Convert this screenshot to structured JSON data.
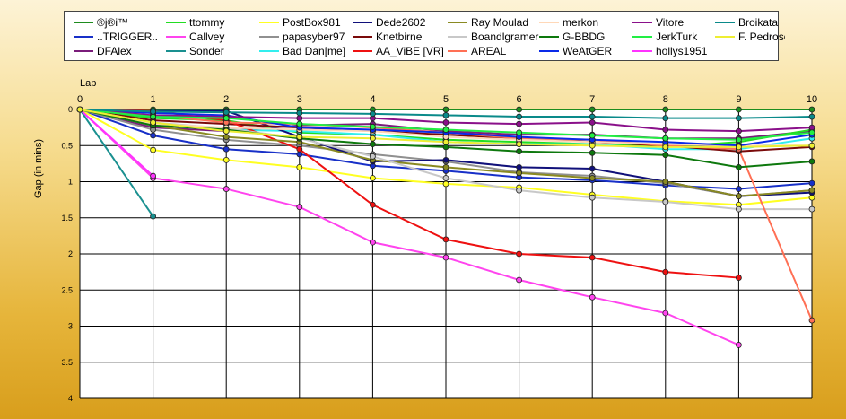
{
  "chart_data": {
    "type": "line",
    "xlabel": "Lap",
    "ylabel": "Gap (in mins)",
    "xlim": [
      0,
      10
    ],
    "ylim": [
      0,
      4
    ],
    "y_inverted": true,
    "x_ticks": [
      "0",
      "1",
      "2",
      "3",
      "4",
      "5",
      "6",
      "7",
      "8",
      "9",
      "10"
    ],
    "y_ticks": [
      "0",
      "0.5",
      "1",
      "1.5",
      "2",
      "2.5",
      "3",
      "3.5",
      "4"
    ],
    "grid": true,
    "legend_position": "top",
    "series": [
      {
        "name": "®j®i™",
        "color": "#1e8c1e",
        "values": [
          0,
          0,
          0,
          0,
          0,
          0,
          0,
          0,
          0,
          0,
          0
        ]
      },
      {
        "name": "..TRIGGER..",
        "color": "#1830c8",
        "values": [
          0,
          0.36,
          0.55,
          0.62,
          0.78,
          0.85,
          0.94,
          0.98,
          1.05,
          1.1,
          1.02
        ]
      },
      {
        "name": "DFAlex",
        "color": "#7a1c7a",
        "values": [
          0,
          0.25,
          0.3,
          0.22,
          0.2,
          0.3,
          0.35,
          0.35,
          0.4,
          0.4,
          0.3
        ]
      },
      {
        "name": "ttommy",
        "color": "#22dd22",
        "values": [
          0,
          0.12,
          0.15,
          0.32,
          0.35,
          0.42,
          0.45,
          0.48,
          0.52,
          0.45,
          0.28
        ]
      },
      {
        "name": "Callvey",
        "color": "#ff44ee",
        "values": [
          0,
          0.95,
          1.1,
          1.35,
          1.84,
          2.05,
          2.36,
          2.6,
          2.82,
          3.26,
          null
        ]
      },
      {
        "name": "Sonder",
        "color": "#1a9090",
        "values": [
          0,
          1.48,
          null,
          null,
          null,
          null,
          null,
          null,
          null,
          null,
          null
        ]
      },
      {
        "name": "PostBox981",
        "color": "#ffff22",
        "values": [
          0,
          0.56,
          0.7,
          0.8,
          0.95,
          1.03,
          1.08,
          1.18,
          1.27,
          1.32,
          1.22
        ]
      },
      {
        "name": "papasyber97",
        "color": "#909090",
        "values": [
          0,
          0.28,
          0.42,
          0.5,
          0.62,
          0.72,
          0.87,
          0.92,
          1.02,
          1.2,
          1.12
        ]
      },
      {
        "name": "Bad Dan[me]",
        "color": "#33eeee",
        "values": [
          0,
          0.22,
          0.28,
          0.3,
          0.35,
          0.45,
          0.48,
          0.48,
          0.55,
          0.55,
          0.4
        ]
      },
      {
        "name": "Dede2602",
        "color": "#10107a",
        "values": [
          0,
          0.02,
          0.02,
          0.38,
          0.72,
          0.7,
          0.8,
          0.82,
          1.0,
          1.2,
          1.15
        ]
      },
      {
        "name": "Knetbirne",
        "color": "#7a0a0a",
        "values": [
          0,
          0.15,
          0.2,
          0.25,
          0.3,
          0.35,
          0.4,
          0.45,
          0.5,
          0.58,
          0.52
        ]
      },
      {
        "name": "AA_ViBE [VR]",
        "color": "#ee1111",
        "values": [
          0,
          0.02,
          0.15,
          0.55,
          1.32,
          1.8,
          2.0,
          2.05,
          2.25,
          2.33,
          null
        ]
      },
      {
        "name": "Ray Moulad",
        "color": "#8a8a22",
        "values": [
          0,
          0.22,
          0.38,
          0.45,
          0.7,
          0.8,
          0.88,
          0.95,
          1.0,
          1.2,
          1.12
        ]
      },
      {
        "name": "Boandlgramer",
        "color": "#c8c8c8",
        "values": [
          0,
          0.18,
          0.26,
          0.4,
          0.65,
          0.95,
          1.12,
          1.22,
          1.28,
          1.38,
          1.38
        ]
      },
      {
        "name": "AREAL",
        "color": "#ff7055",
        "values": [
          0,
          0.08,
          0.18,
          0.2,
          0.25,
          0.32,
          0.4,
          0.42,
          0.5,
          0.55,
          2.92
        ]
      },
      {
        "name": "merkon",
        "color": "#ffd8b8",
        "values": [
          0,
          0.2,
          0.25,
          0.28,
          0.3,
          0.38,
          0.42,
          0.45,
          0.48,
          0.5,
          0.5
        ]
      },
      {
        "name": "G-BBDG",
        "color": "#0d780d",
        "values": [
          0,
          0.22,
          0.28,
          0.4,
          0.48,
          0.52,
          0.58,
          0.6,
          0.63,
          0.8,
          0.72
        ]
      },
      {
        "name": "WeAtGER",
        "color": "#0a2ae8",
        "values": [
          0,
          0.05,
          0.08,
          0.25,
          0.28,
          0.32,
          0.38,
          0.42,
          0.45,
          0.5,
          0.35
        ]
      },
      {
        "name": "Vitore",
        "color": "#8a108a",
        "values": [
          0,
          0.08,
          0.1,
          0.12,
          0.12,
          0.18,
          0.2,
          0.18,
          0.28,
          0.3,
          0.25
        ]
      },
      {
        "name": "JerkTurk",
        "color": "#22ee44",
        "values": [
          0,
          0.1,
          0.12,
          0.2,
          0.24,
          0.28,
          0.32,
          0.36,
          0.4,
          0.42,
          0.32
        ]
      },
      {
        "name": "hollys1951",
        "color": "#ff33ff",
        "values": [
          0,
          0.92,
          null,
          null,
          null,
          null,
          null,
          null,
          null,
          null,
          null
        ]
      },
      {
        "name": "Broikata",
        "color": "#0a8a8a",
        "values": [
          0,
          0.03,
          0.04,
          0.05,
          0.06,
          0.08,
          0.1,
          0.1,
          0.12,
          0.12,
          0.1
        ]
      },
      {
        "name": "F. Pedroso",
        "color": "#eeee33",
        "values": [
          0,
          0.18,
          0.3,
          0.38,
          0.4,
          0.45,
          0.48,
          0.5,
          0.52,
          0.52,
          0.5
        ]
      }
    ]
  }
}
